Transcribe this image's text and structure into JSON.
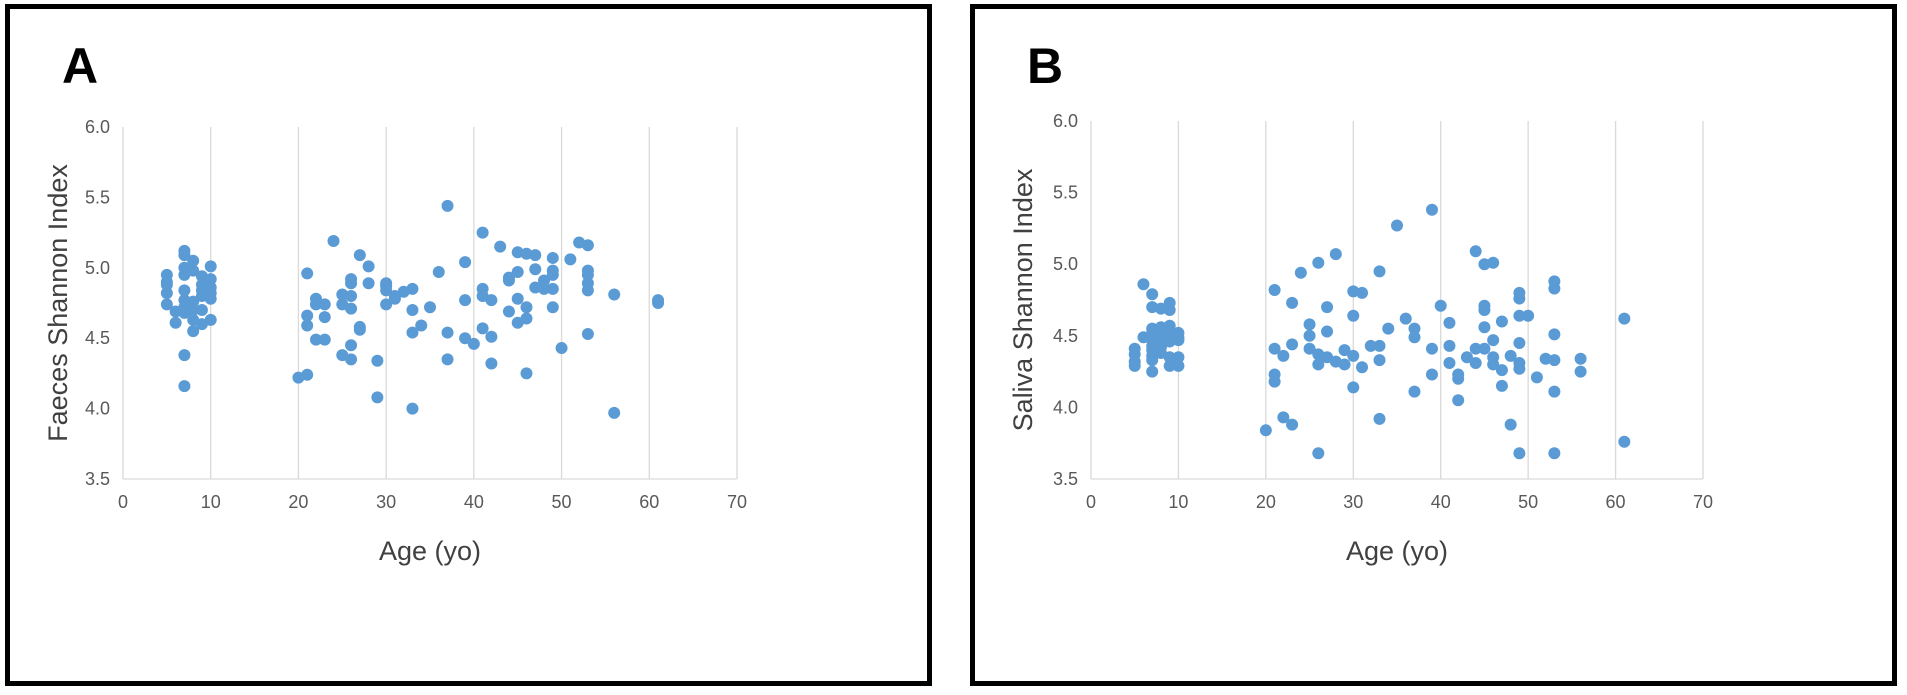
{
  "colors": {
    "marker": "#5B9BD5",
    "grid": "#D9D9D9",
    "tick_text": "#595959"
  },
  "panels": [
    {
      "letter": "A"
    },
    {
      "letter": "B"
    }
  ],
  "chart_data": [
    {
      "type": "scatter",
      "title": "",
      "xlabel": "Age (yo)",
      "ylabel": "Faeces Shannon Index",
      "xlim": [
        0,
        70
      ],
      "ylim": [
        3.5,
        6.0
      ],
      "xticks": [
        "0",
        "10",
        "20",
        "30",
        "40",
        "50",
        "60",
        "70"
      ],
      "yticks": [
        "3.5",
        "4.0",
        "4.5",
        "5.0",
        "5.5",
        "6.0"
      ],
      "grid": "vertical",
      "series": [
        {
          "name": "Faeces",
          "points": [
            [
              5,
              4.95
            ],
            [
              5,
              4.9
            ],
            [
              5,
              4.88
            ],
            [
              5,
              4.82
            ],
            [
              5,
              4.74
            ],
            [
              6,
              4.69
            ],
            [
              6,
              4.61
            ],
            [
              7,
              5.12
            ],
            [
              7,
              5.09
            ],
            [
              7,
              5.0
            ],
            [
              7,
              4.95
            ],
            [
              7,
              4.84
            ],
            [
              7,
              4.77
            ],
            [
              7,
              4.72
            ],
            [
              7,
              4.68
            ],
            [
              7,
              4.38
            ],
            [
              7,
              4.16
            ],
            [
              8,
              5.05
            ],
            [
              8,
              4.98
            ],
            [
              8,
              4.76
            ],
            [
              8,
              4.7
            ],
            [
              8,
              4.63
            ],
            [
              8,
              4.55
            ],
            [
              9,
              4.94
            ],
            [
              9,
              4.88
            ],
            [
              9,
              4.84
            ],
            [
              9,
              4.8
            ],
            [
              9,
              4.7
            ],
            [
              9,
              4.6
            ],
            [
              10,
              5.01
            ],
            [
              10,
              4.92
            ],
            [
              10,
              4.86
            ],
            [
              10,
              4.82
            ],
            [
              10,
              4.78
            ],
            [
              10,
              4.63
            ],
            [
              20,
              4.22
            ],
            [
              21,
              4.96
            ],
            [
              21,
              4.66
            ],
            [
              21,
              4.59
            ],
            [
              21,
              4.24
            ],
            [
              22,
              4.78
            ],
            [
              22,
              4.74
            ],
            [
              22,
              4.49
            ],
            [
              23,
              4.74
            ],
            [
              23,
              4.65
            ],
            [
              23,
              4.49
            ],
            [
              24,
              5.19
            ],
            [
              25,
              4.81
            ],
            [
              25,
              4.74
            ],
            [
              25,
              4.38
            ],
            [
              26,
              4.92
            ],
            [
              26,
              4.89
            ],
            [
              26,
              4.8
            ],
            [
              26,
              4.71
            ],
            [
              26,
              4.45
            ],
            [
              26,
              4.35
            ],
            [
              27,
              5.09
            ],
            [
              27,
              4.58
            ],
            [
              27,
              4.56
            ],
            [
              28,
              5.01
            ],
            [
              28,
              4.89
            ],
            [
              29,
              4.34
            ],
            [
              29,
              4.08
            ],
            [
              30,
              4.89
            ],
            [
              30,
              4.87
            ],
            [
              30,
              4.84
            ],
            [
              30,
              4.74
            ],
            [
              31,
              4.8
            ],
            [
              31,
              4.78
            ],
            [
              32,
              4.83
            ],
            [
              33,
              4.85
            ],
            [
              33,
              4.7
            ],
            [
              33,
              4.54
            ],
            [
              33,
              4.0
            ],
            [
              34,
              4.59
            ],
            [
              35,
              4.72
            ],
            [
              36,
              4.97
            ],
            [
              37,
              5.44
            ],
            [
              37,
              4.54
            ],
            [
              37,
              4.35
            ],
            [
              39,
              5.04
            ],
            [
              39,
              4.77
            ],
            [
              39,
              4.5
            ],
            [
              40,
              4.46
            ],
            [
              41,
              5.25
            ],
            [
              41,
              4.85
            ],
            [
              41,
              4.8
            ],
            [
              41,
              4.57
            ],
            [
              42,
              4.77
            ],
            [
              42,
              4.51
            ],
            [
              42,
              4.32
            ],
            [
              43,
              5.15
            ],
            [
              44,
              4.93
            ],
            [
              44,
              4.91
            ],
            [
              44,
              4.69
            ],
            [
              45,
              5.11
            ],
            [
              45,
              4.97
            ],
            [
              45,
              4.78
            ],
            [
              45,
              4.61
            ],
            [
              46,
              5.1
            ],
            [
              46,
              4.72
            ],
            [
              46,
              4.64
            ],
            [
              46,
              4.25
            ],
            [
              47,
              5.09
            ],
            [
              47,
              4.99
            ],
            [
              47,
              4.86
            ],
            [
              48,
              4.91
            ],
            [
              48,
              4.85
            ],
            [
              49,
              5.07
            ],
            [
              49,
              4.98
            ],
            [
              49,
              4.95
            ],
            [
              49,
              4.85
            ],
            [
              49,
              4.72
            ],
            [
              50,
              4.43
            ],
            [
              51,
              5.06
            ],
            [
              52,
              5.18
            ],
            [
              53,
              5.16
            ],
            [
              53,
              4.98
            ],
            [
              53,
              4.95
            ],
            [
              53,
              4.89
            ],
            [
              53,
              4.84
            ],
            [
              53,
              4.53
            ],
            [
              56,
              4.81
            ],
            [
              56,
              3.97
            ],
            [
              61,
              4.77
            ],
            [
              61,
              4.75
            ]
          ]
        }
      ]
    },
    {
      "type": "scatter",
      "title": "",
      "xlabel": "Age (yo)",
      "ylabel": "Saliva Shannon Index",
      "xlim": [
        0,
        70
      ],
      "ylim": [
        3.5,
        6.0
      ],
      "xticks": [
        "0",
        "10",
        "20",
        "30",
        "40",
        "50",
        "60",
        "70"
      ],
      "yticks": [
        "3.5",
        "4.0",
        "4.5",
        "5.0",
        "5.5",
        "6.0"
      ],
      "grid": "vertical",
      "series": [
        {
          "name": "Saliva",
          "points": [
            [
              5,
              4.41
            ],
            [
              5,
              4.37
            ],
            [
              5,
              4.32
            ],
            [
              5,
              4.29
            ],
            [
              6,
              4.86
            ],
            [
              6,
              4.49
            ],
            [
              7,
              4.79
            ],
            [
              7,
              4.7
            ],
            [
              7,
              4.55
            ],
            [
              7,
              4.52
            ],
            [
              7,
              4.47
            ],
            [
              7,
              4.43
            ],
            [
              7,
              4.4
            ],
            [
              7,
              4.36
            ],
            [
              7,
              4.33
            ],
            [
              7,
              4.25
            ],
            [
              8,
              4.69
            ],
            [
              8,
              4.56
            ],
            [
              8,
              4.51
            ],
            [
              8,
              4.47
            ],
            [
              8,
              4.42
            ],
            [
              8,
              4.38
            ],
            [
              9,
              4.73
            ],
            [
              9,
              4.68
            ],
            [
              9,
              4.57
            ],
            [
              9,
              4.53
            ],
            [
              9,
              4.46
            ],
            [
              9,
              4.35
            ],
            [
              9,
              4.29
            ],
            [
              10,
              4.52
            ],
            [
              10,
              4.49
            ],
            [
              10,
              4.47
            ],
            [
              10,
              4.35
            ],
            [
              10,
              4.29
            ],
            [
              20,
              3.84
            ],
            [
              21,
              4.82
            ],
            [
              21,
              4.41
            ],
            [
              21,
              4.23
            ],
            [
              21,
              4.18
            ],
            [
              22,
              4.36
            ],
            [
              22,
              3.93
            ],
            [
              23,
              4.73
            ],
            [
              23,
              4.44
            ],
            [
              23,
              3.88
            ],
            [
              24,
              4.94
            ],
            [
              25,
              4.58
            ],
            [
              25,
              4.5
            ],
            [
              25,
              4.41
            ],
            [
              26,
              5.01
            ],
            [
              26,
              4.37
            ],
            [
              26,
              4.3
            ],
            [
              26,
              3.68
            ],
            [
              27,
              4.7
            ],
            [
              27,
              4.53
            ],
            [
              27,
              4.35
            ],
            [
              28,
              5.07
            ],
            [
              28,
              4.32
            ],
            [
              29,
              4.4
            ],
            [
              29,
              4.3
            ],
            [
              30,
              4.81
            ],
            [
              30,
              4.64
            ],
            [
              30,
              4.36
            ],
            [
              30,
              4.14
            ],
            [
              31,
              4.8
            ],
            [
              31,
              4.28
            ],
            [
              32,
              4.43
            ],
            [
              33,
              4.95
            ],
            [
              33,
              4.43
            ],
            [
              33,
              4.33
            ],
            [
              33,
              3.92
            ],
            [
              34,
              4.55
            ],
            [
              35,
              5.27
            ],
            [
              36,
              4.62
            ],
            [
              37,
              4.55
            ],
            [
              37,
              4.49
            ],
            [
              37,
              4.11
            ],
            [
              39,
              5.38
            ],
            [
              39,
              4.41
            ],
            [
              39,
              4.23
            ],
            [
              40,
              4.71
            ],
            [
              41,
              4.59
            ],
            [
              41,
              4.43
            ],
            [
              41,
              4.31
            ],
            [
              42,
              4.23
            ],
            [
              42,
              4.2
            ],
            [
              42,
              4.05
            ],
            [
              43,
              4.35
            ],
            [
              44,
              5.09
            ],
            [
              44,
              4.41
            ],
            [
              44,
              4.31
            ],
            [
              45,
              5.0
            ],
            [
              45,
              4.71
            ],
            [
              45,
              4.68
            ],
            [
              45,
              4.56
            ],
            [
              45,
              4.41
            ],
            [
              46,
              5.01
            ],
            [
              46,
              4.47
            ],
            [
              46,
              4.35
            ],
            [
              46,
              4.3
            ],
            [
              47,
              4.6
            ],
            [
              47,
              4.26
            ],
            [
              47,
              4.15
            ],
            [
              48,
              4.36
            ],
            [
              48,
              3.88
            ],
            [
              49,
              4.8
            ],
            [
              49,
              4.76
            ],
            [
              49,
              4.64
            ],
            [
              49,
              4.45
            ],
            [
              49,
              4.31
            ],
            [
              49,
              4.27
            ],
            [
              49,
              3.68
            ],
            [
              50,
              4.64
            ],
            [
              51,
              4.21
            ],
            [
              52,
              4.34
            ],
            [
              53,
              4.88
            ],
            [
              53,
              4.83
            ],
            [
              53,
              4.51
            ],
            [
              53,
              4.33
            ],
            [
              53,
              4.11
            ],
            [
              53,
              3.68
            ],
            [
              56,
              4.34
            ],
            [
              56,
              4.25
            ],
            [
              61,
              4.62
            ],
            [
              61,
              3.76
            ]
          ]
        }
      ]
    }
  ]
}
